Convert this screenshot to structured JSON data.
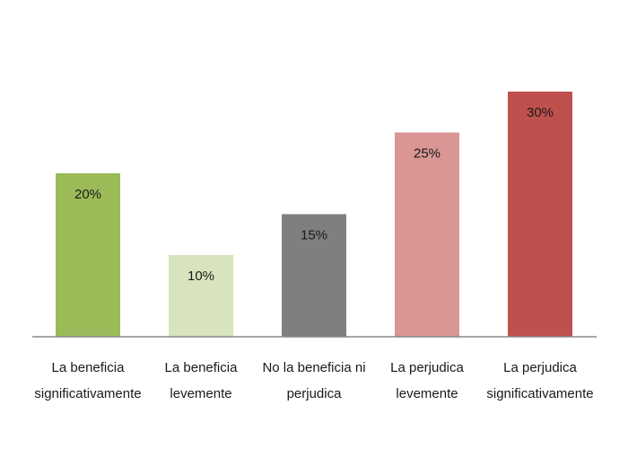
{
  "chart_data": {
    "type": "bar",
    "categories": [
      [
        "La beneficia",
        "significativamente"
      ],
      [
        "La beneficia",
        "levemente"
      ],
      [
        "No la beneficia ni",
        "perjudica"
      ],
      [
        "La perjudica",
        "levemente"
      ],
      [
        "La perjudica",
        "significativamente"
      ]
    ],
    "values": [
      20,
      10,
      15,
      25,
      30
    ],
    "value_labels": [
      "20%",
      "10%",
      "15%",
      "25%",
      "30%"
    ],
    "colors": [
      "#9bbb59",
      "#d7e4bd",
      "#7f7f7f",
      "#d99694",
      "#c0504d"
    ],
    "axis_color": "#888888",
    "ylim": [
      0,
      30
    ],
    "grid": false,
    "legend": "none",
    "title": "",
    "xlabel": "",
    "ylabel": ""
  }
}
